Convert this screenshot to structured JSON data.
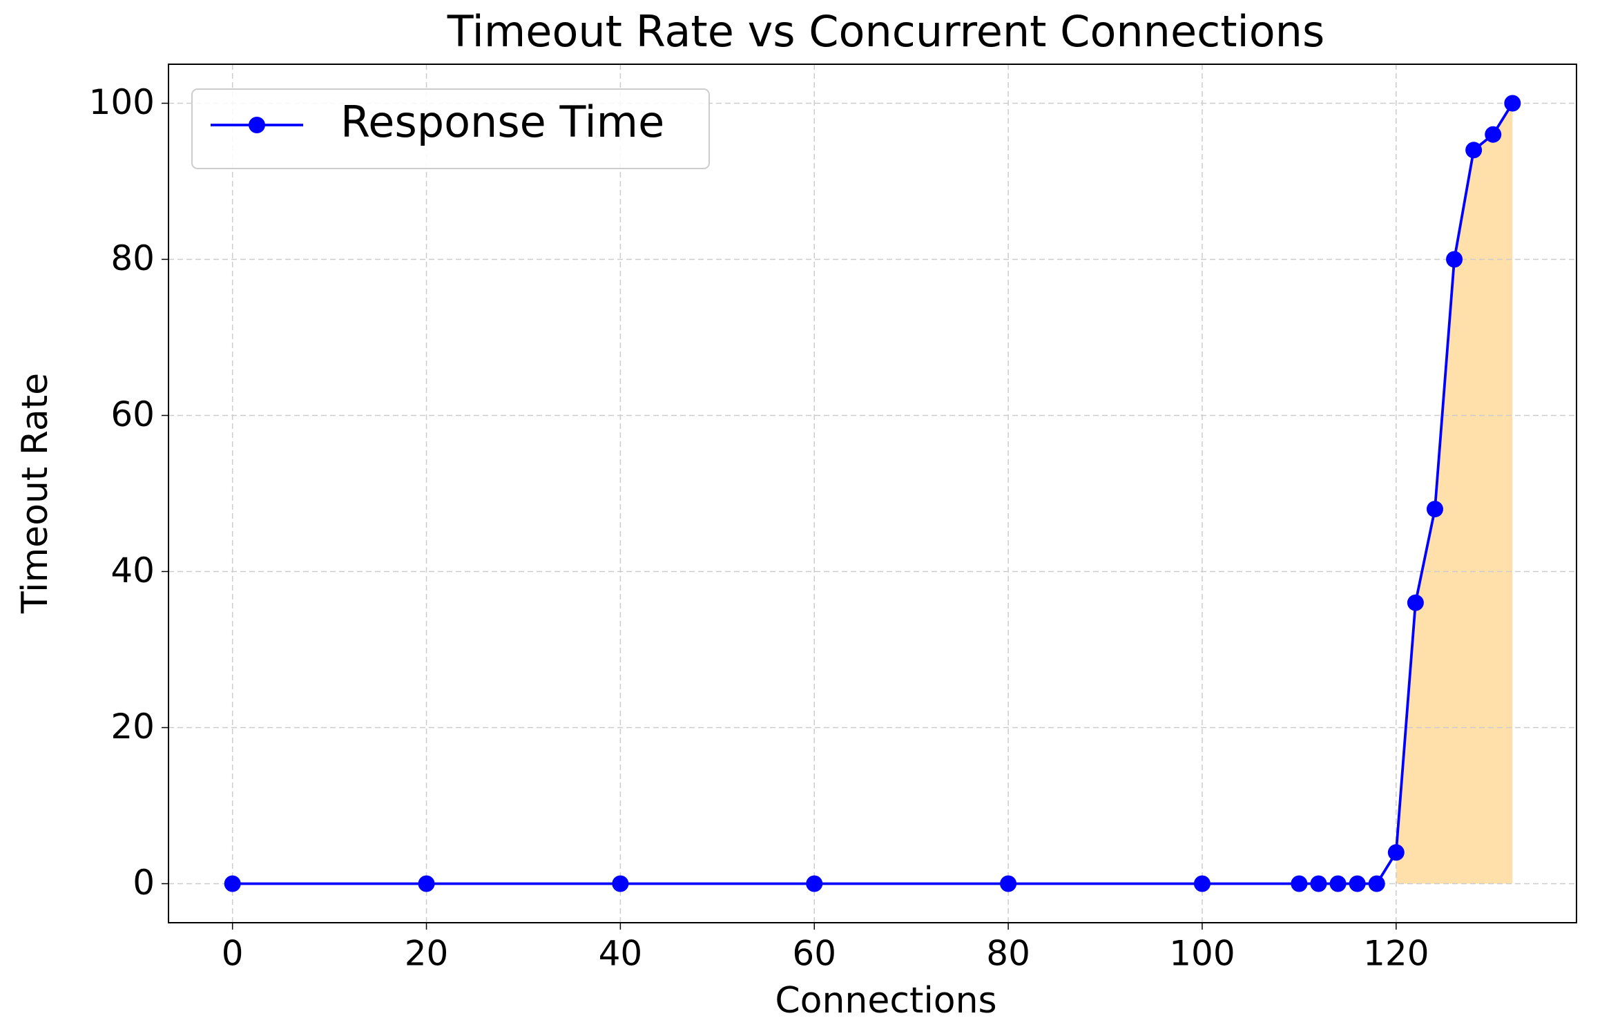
{
  "chart_data": {
    "type": "line",
    "title": "Timeout Rate vs Concurrent Connections",
    "x_label": "Connections",
    "y_label": "Timeout Rate",
    "x": [
      0,
      20,
      40,
      60,
      80,
      100,
      110,
      112,
      114,
      116,
      118,
      120,
      122,
      124,
      126,
      128,
      130,
      132
    ],
    "series": [
      {
        "name": "Response Time",
        "color": "#0000ff",
        "values": [
          0,
          0,
          0,
          0,
          0,
          0,
          0,
          0,
          0,
          0,
          0,
          4,
          36,
          48,
          80,
          94,
          96,
          100
        ]
      }
    ],
    "fill": {
      "color": "#ffe0aa",
      "xmin": 120
    },
    "xlim": [
      -6.6,
      138.6
    ],
    "ylim": [
      -5,
      105
    ],
    "xticks": [
      0,
      20,
      40,
      60,
      80,
      100,
      120
    ],
    "yticks": [
      0,
      20,
      40,
      60,
      80,
      100
    ],
    "grid": true,
    "legend": "upper left"
  }
}
